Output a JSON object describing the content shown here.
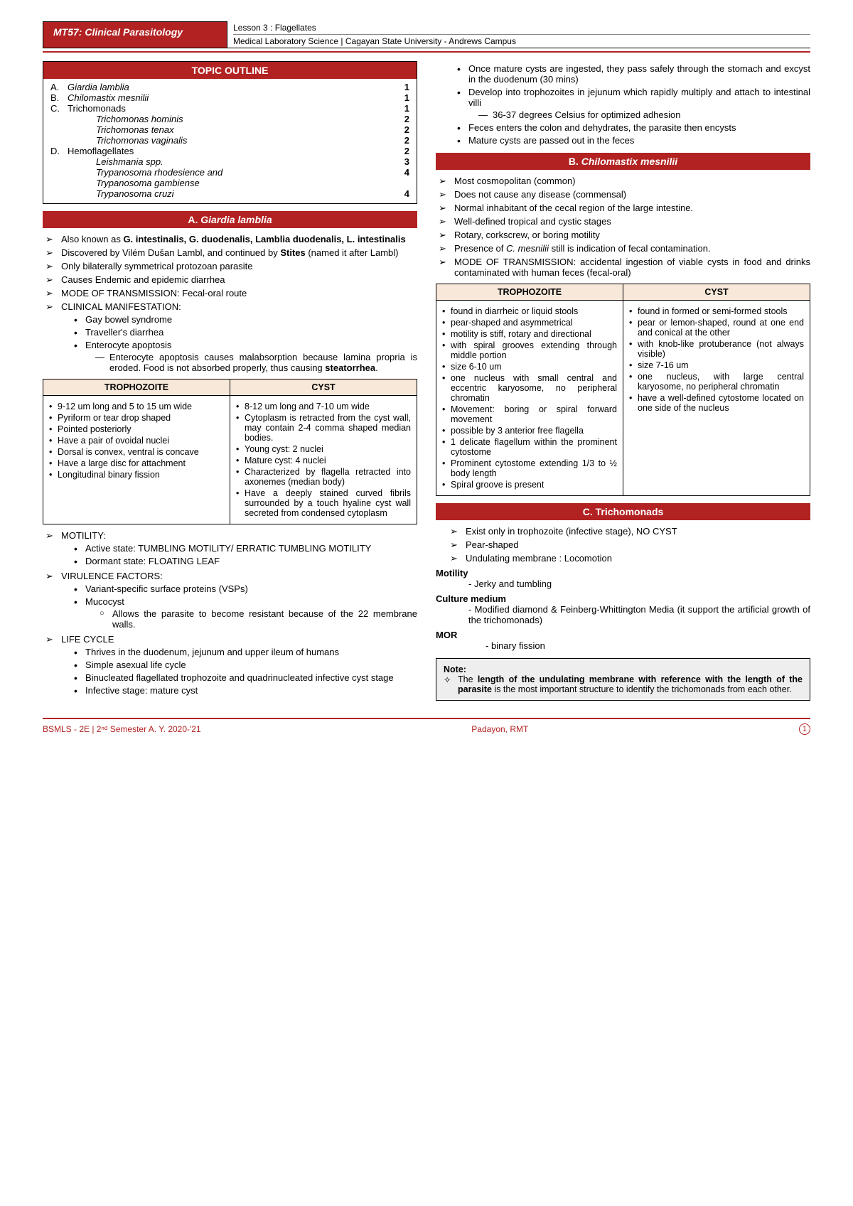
{
  "header": {
    "course": "MT57: Clinical Parasitology",
    "lesson": "Lesson 3 : Flagellates",
    "dept": "Medical Laboratory Science | Cagayan State University - Andrews Campus"
  },
  "outline": {
    "title": "TOPIC OUTLINE",
    "rows": [
      {
        "lead": "A.",
        "txt": "Giardia lamblia",
        "pg": "1",
        "ital": true
      },
      {
        "lead": "B.",
        "txt": "Chilomastix mesnilii",
        "pg": "1",
        "ital": true
      },
      {
        "lead": "C.",
        "txt": "Trichomonads",
        "pg": "1",
        "ital": false
      },
      {
        "lead": "",
        "txt": "Trichomonas hominis",
        "pg": "2",
        "ital": true,
        "sub": true
      },
      {
        "lead": "",
        "txt": "Trichomonas tenax",
        "pg": "2",
        "ital": true,
        "sub": true
      },
      {
        "lead": "",
        "txt": "Trichomonas vaginalis",
        "pg": "2",
        "ital": true,
        "sub": true
      },
      {
        "lead": "D.",
        "txt": "Hemoflagellates",
        "pg": "2",
        "ital": false
      },
      {
        "lead": "",
        "txt": "Leishmania spp.",
        "pg": "3",
        "ital": true,
        "sub": true
      },
      {
        "lead": "",
        "txt": "Trypanosoma rhodesience and",
        "pg": "4",
        "ital": true,
        "sub": true
      },
      {
        "lead": "",
        "txt": "Trypanosoma gambiense",
        "pg": "",
        "ital": true,
        "sub": true
      },
      {
        "lead": "",
        "txt": "Trypanosoma cruzi",
        "pg": "4",
        "ital": true,
        "sub": true
      }
    ]
  },
  "secA": {
    "title_pre": "A. ",
    "title_ital": "Giardia lamblia",
    "b1": "Also known as ",
    "b1b": "G. intestinalis, G. duodenalis, Lamblia duodenalis, L. intestinalis",
    "b2a": "Discovered by Vilém Dušan Lambl, and continued by ",
    "b2b": "Stites",
    "b2c": " (named it after Lambl)",
    "b3": "Only bilaterally symmetrical protozoan parasite",
    "b4": "Causes Endemic and epidemic diarrhea",
    "b5": "MODE OF TRANSMISSION: Fecal-oral route",
    "b6": "CLINICAL MANIFESTATION:",
    "cm1": "Gay bowel syndrome",
    "cm2": "Traveller's diarrhea",
    "cm3": "Enterocyte apoptosis",
    "cm3d": "Enterocyte apoptosis causes malabsorption because lamina propria is eroded. Food is not absorbed properly, thus causing ",
    "cm3d_b": "steatorrhea",
    "th1": "TROPHOZOITE",
    "th2": "CYST",
    "troph": [
      "9-12 um long and 5 to 15 um wide",
      "Pyriform or tear drop shaped",
      "Pointed posteriorly",
      "Have a pair of ovoidal nuclei",
      "Dorsal is convex, ventral is concave",
      "Have a large disc for attachment",
      "Longitudinal binary fission"
    ],
    "cyst": [
      "8-12 um long and 7-10 um wide",
      "Cytoplasm is retracted from the cyst wall, may contain 2-4 comma shaped median bodies.",
      "Young cyst: 2 nuclei",
      "Mature cyst: 4 nuclei",
      "Characterized by flagella retracted into axonemes (median body)",
      "Have a deeply stained curved fibrils surrounded by a touch hyaline cyst wall secreted from condensed cytoplasm"
    ],
    "mot": "MOTILITY:",
    "mot1": "Active state: TUMBLING MOTILITY/ ERRATIC TUMBLING MOTILITY",
    "mot2": "Dormant state: FLOATING LEAF",
    "vf": "VIRULENCE FACTORS:",
    "vf1": "Variant-specific surface proteins (VSPs)",
    "vf2": "Mucocyst",
    "vf2c": "Allows the parasite to become resistant because of the 22 membrane walls.",
    "lc": "LIFE CYCLE",
    "lc1": "Thrives in the duodenum, jejunum and upper ileum of humans",
    "lc2": "Simple asexual life cycle",
    "lc3": "Binucleated flagellated trophozoite and quadrinucleated infective cyst stage",
    "lc4": "Infective stage: mature cyst"
  },
  "right1": {
    "r1": "Once mature cysts are ingested, they pass safely through the stomach and excyst in the duodenum (30 mins)",
    "r2": "Develop into trophozoites in jejunum which rapidly multiply and attach to intestinal villi",
    "r2d": "36-37 degrees Celsius for optimized adhesion",
    "r3": "Feces enters the colon and dehydrates, the parasite then encysts",
    "r4": "Mature cysts are passed out in the feces"
  },
  "secB": {
    "title_pre": "B. ",
    "title_ital": "Chilomastix mesnilii",
    "p": [
      "Most cosmopolitan (common)",
      "Does not cause any disease (commensal)",
      "Normal inhabitant of the cecal region of the large intestine.",
      "Well-defined tropical and cystic stages",
      "Rotary, corkscrew, or boring motility"
    ],
    "p6a": "Presence of ",
    "p6i": "C. mesnilii",
    "p6b": " still is indication of fecal contamination.",
    "p7": "MODE OF TRANSMISSION: accidental ingestion of viable cysts in food and drinks contaminated with human feces (fecal-oral)",
    "th1": "TROPHOZOITE",
    "th2": "CYST",
    "troph": [
      "found in diarrheic or liquid stools",
      "pear-shaped and asymmetrical",
      "motility is stiff, rotary and directional",
      "with spiral grooves extending through middle portion",
      "size 6-10 um",
      "one nucleus with small central and eccentric karyosome, no peripheral chromatin",
      "Movement: boring or spiral forward movement",
      "possible by 3 anterior free flagella",
      "1 delicate flagellum within the prominent cytostome",
      "Prominent cytostome extending 1/3 to ½ body length",
      "Spiral groove is present"
    ],
    "cyst": [
      "found in formed or semi-formed stools",
      "pear or lemon-shaped, round at one end and conical at the other",
      "with knob-like protuberance (not always visible)",
      "size 7-16 um",
      "one nucleus, with large central karyosome, no peripheral chromatin",
      "have a well-defined cytostome located on one side of the nucleus"
    ]
  },
  "secC": {
    "title": "C. Trichomonads",
    "p": [
      "Exist only in trophozoite (infective stage), NO CYST",
      "Pear-shaped",
      "Undulating membrane : Locomotion"
    ],
    "mot_h": "Motility",
    "mot": "- Jerky and tumbling",
    "cul_h": "Culture medium",
    "cul": "- Modified diamond & Feinberg-Whittington Media (it support the artificial growth of the trichomonads)",
    "mor_h": "MOR",
    "mor": "- binary fission",
    "note_h": "Note:",
    "note_pre": "The ",
    "note_b": "length of the undulating membrane with reference with the length of the parasite",
    "note_post": " is the most important structure to identify the trichomonads from each other."
  },
  "footer": {
    "left": "BSMLS - 2E | 2ⁿᵈ Semester  A. Y. 2020-'21",
    "mid": "Padayon, RMT",
    "pg": "1"
  }
}
